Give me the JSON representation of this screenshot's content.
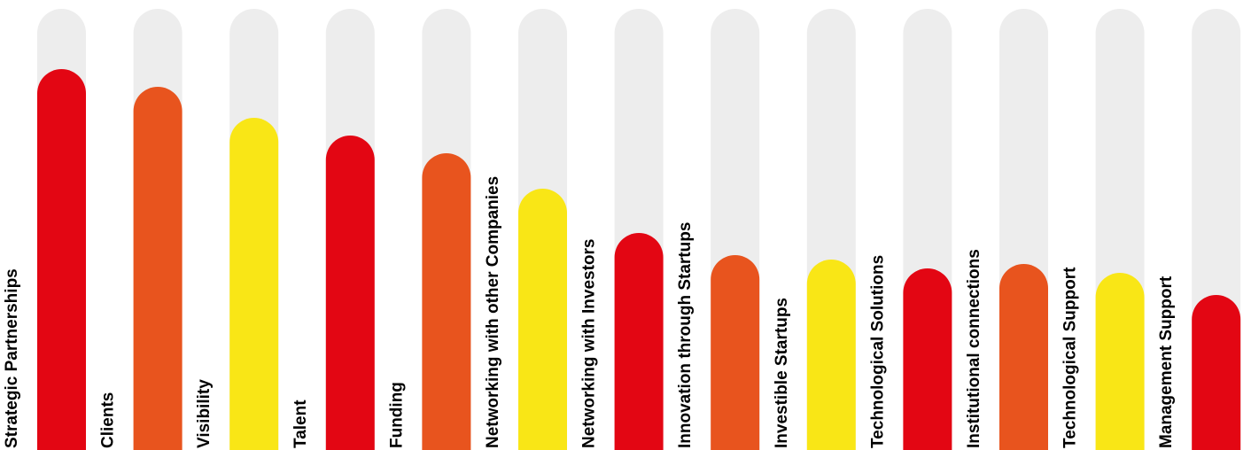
{
  "chart_data": {
    "type": "bar",
    "title": "",
    "xlabel": "",
    "ylabel": "",
    "ylim": [
      0,
      100
    ],
    "grid": false,
    "legend": "none",
    "categories": [
      "Strategic Partnerships",
      "Clients",
      "Visibility",
      "Talent",
      "Funding",
      "Networking with other Companies",
      "Networking with Investors",
      "Innovation through Startups",
      "Investible Startups",
      "Technological Solutions",
      "Institutional connections",
      "Technological Support",
      "Management Support"
    ],
    "values": [
      86,
      82,
      75,
      71,
      67,
      59,
      49,
      44,
      43,
      41,
      42,
      40,
      35
    ],
    "colors": [
      "#e30613",
      "#e8541e",
      "#f9e616"
    ],
    "track_color": "#ededed"
  }
}
